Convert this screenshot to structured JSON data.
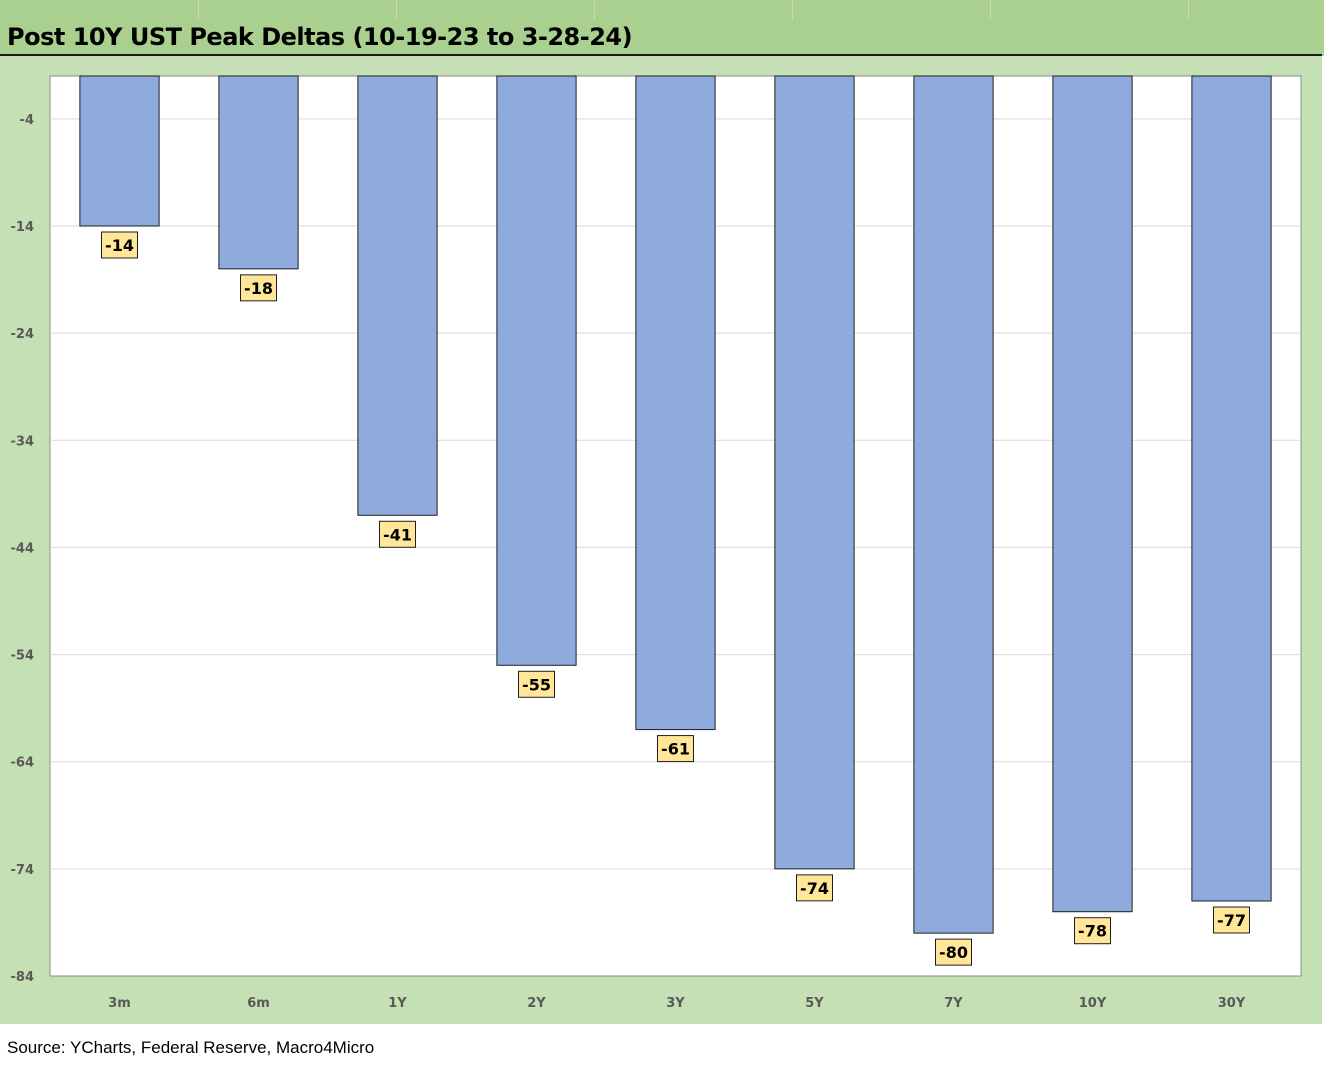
{
  "title": "Post 10Y UST Peak Deltas (10-19-23 to 3-28-24)",
  "source": "Source: YCharts, Federal Reserve, Macro4Micro",
  "colors": {
    "header_green": "#a9d08e",
    "chart_background": "#c5e0b4",
    "plot_background": "#ffffff",
    "bar_fill": "#8faadc",
    "label_fill": "#ffe699"
  },
  "chart_data": {
    "type": "bar",
    "title": "Post 10Y UST Peak Deltas (10-19-23 to 3-28-24)",
    "categories": [
      "3m",
      "6m",
      "1Y",
      "2Y",
      "3Y",
      "5Y",
      "7Y",
      "10Y",
      "30Y"
    ],
    "values": [
      -14,
      -18,
      -41,
      -55,
      -61,
      -74,
      -80,
      -78,
      -77
    ],
    "data_labels": [
      "-14",
      "-18",
      "-41",
      "-55",
      "-61",
      "-74",
      "-80",
      "-78",
      "-77"
    ],
    "y_ticks": [
      -4,
      -14,
      -24,
      -34,
      -44,
      -54,
      -64,
      -74,
      -84
    ],
    "y_tick_labels": [
      "-4",
      "-14",
      "-24",
      "-34",
      "-44",
      "-54",
      "-64",
      "-74",
      "-84"
    ],
    "ylim": [
      -84,
      0
    ],
    "xlabel": "",
    "ylabel": "",
    "grid": true,
    "legend": "none"
  }
}
